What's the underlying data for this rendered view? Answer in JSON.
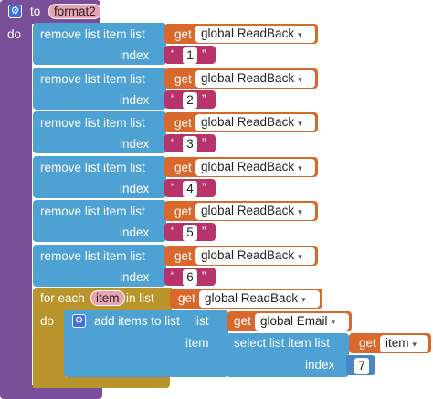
{
  "procedure": {
    "to_label": "to",
    "name": "format2",
    "do_label": "do"
  },
  "remove_blocks": [
    {
      "label": "remove list item  list",
      "get_label": "get",
      "variable": "global ReadBack",
      "index_label": "index",
      "index_value": "1"
    },
    {
      "label": "remove list item  list",
      "get_label": "get",
      "variable": "global ReadBack",
      "index_label": "index",
      "index_value": "2"
    },
    {
      "label": "remove list item  list",
      "get_label": "get",
      "variable": "global ReadBack",
      "index_label": "index",
      "index_value": "3"
    },
    {
      "label": "remove list item  list",
      "get_label": "get",
      "variable": "global ReadBack",
      "index_label": "index",
      "index_value": "4"
    },
    {
      "label": "remove list item  list",
      "get_label": "get",
      "variable": "global ReadBack",
      "index_label": "index",
      "index_value": "5"
    },
    {
      "label": "remove list item  list",
      "get_label": "get",
      "variable": "global ReadBack",
      "index_label": "index",
      "index_value": "6"
    }
  ],
  "for_each": {
    "label": "for each",
    "item_name": "item",
    "in_list_label": "in list",
    "get_label": "get",
    "variable": "global ReadBack",
    "do_label": "do"
  },
  "add_items": {
    "label": "add items to list",
    "list_label": "list",
    "get_label": "get",
    "variable": "global Email",
    "item_label": "item",
    "select_label": "select list item  list",
    "select_get_label": "get",
    "select_variable": "item",
    "index_label": "index",
    "index_value": "7"
  },
  "quote_open": "“",
  "quote_close": "”",
  "dropdown_glyph": "▾",
  "colors": {
    "procedure": "#7a4f9a",
    "list": "#4ea1d3",
    "variable": "#d9682c",
    "text": "#b8336a",
    "control": "#b8942b",
    "math": "#4a85c7"
  }
}
